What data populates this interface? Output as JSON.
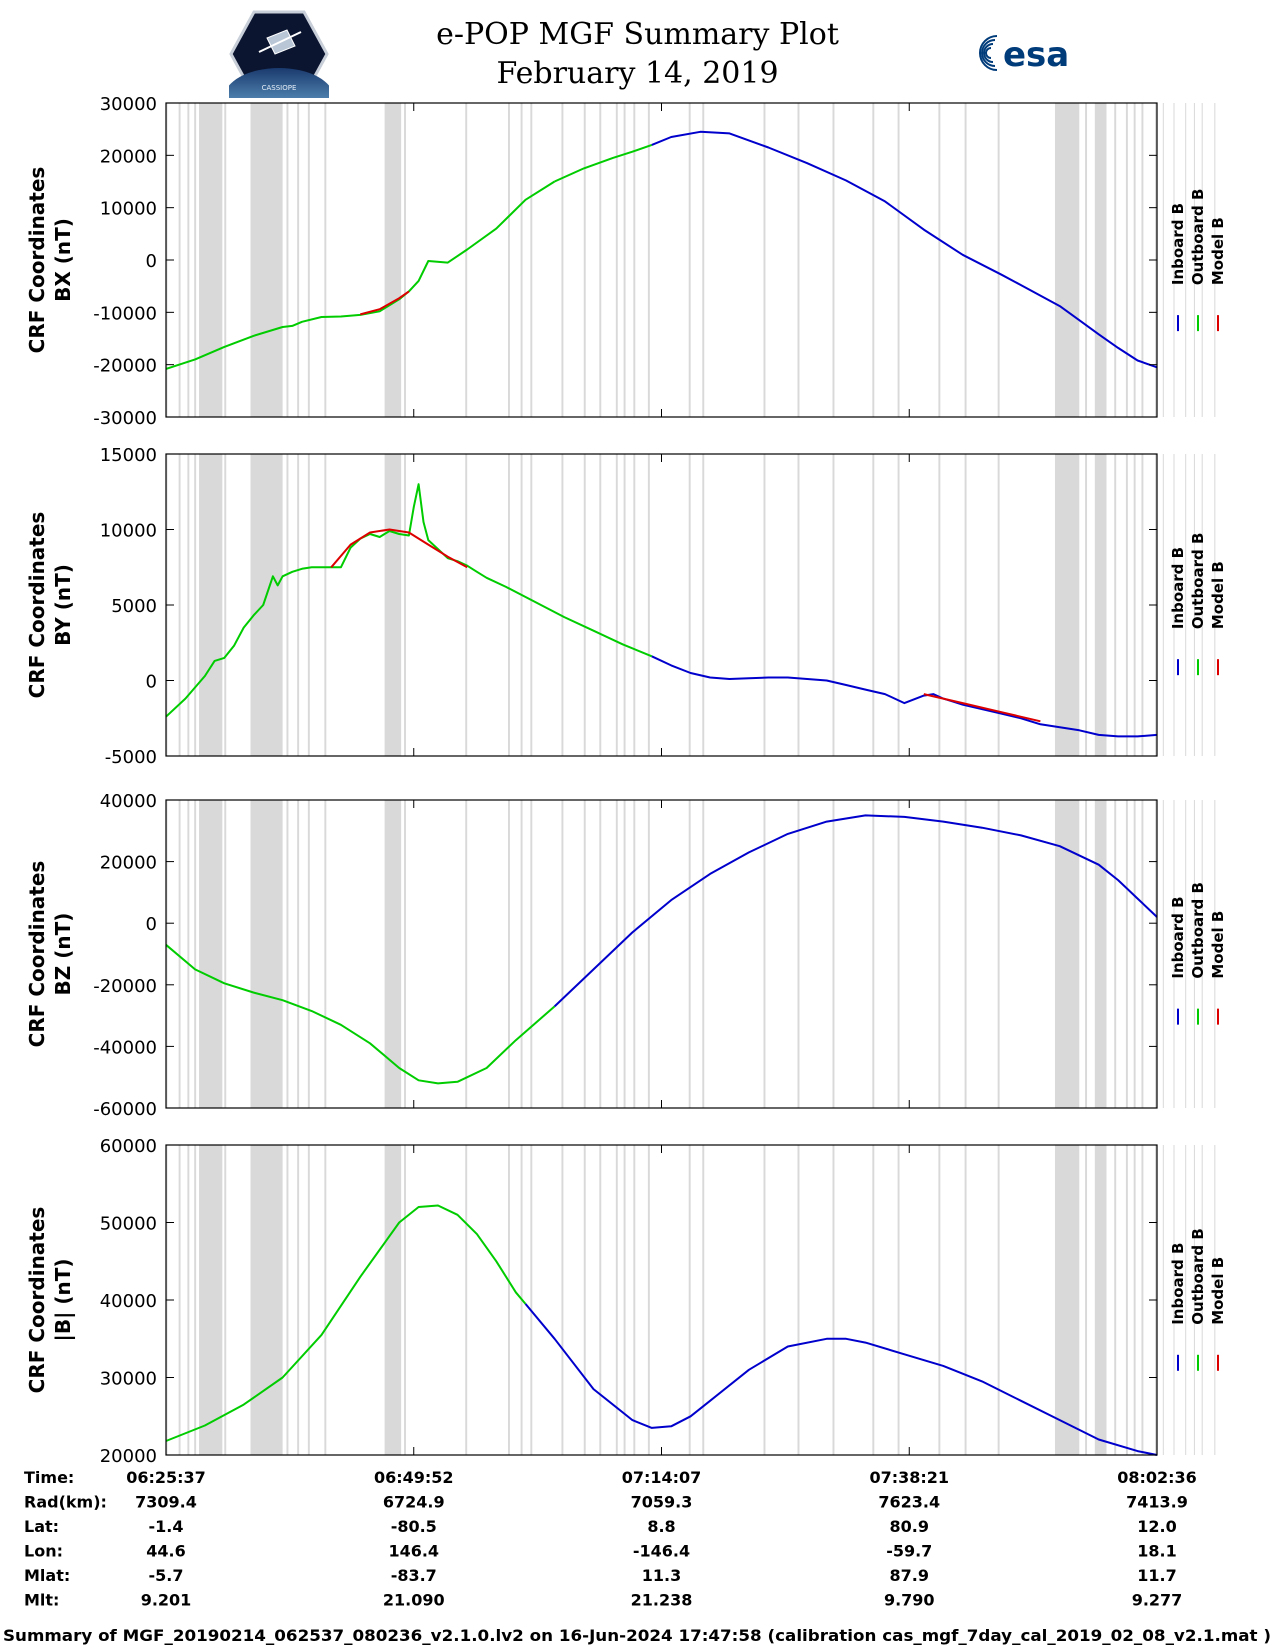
{
  "header": {
    "title_line1": "e-POP MGF Summary Plot",
    "title_line2": "February 14, 2019",
    "left_logo": "cassiope-mission-logo",
    "left_logo_text": "CASSIOPE",
    "right_logo_text": "esa"
  },
  "colors": {
    "inboard": "#0000cc",
    "outboard": "#00cc00",
    "model": "#dd0000",
    "gap_shading": "#d9d9d9"
  },
  "legend": {
    "entries": [
      "Inboard B",
      "Outboard B",
      "Model B"
    ]
  },
  "gap_intervals_minutes": [
    [
      0.0,
      0.15
    ],
    [
      1.3,
      1.5
    ],
    [
      2.2,
      2.4
    ],
    [
      2.9,
      3.1
    ],
    [
      3.4,
      5.8
    ],
    [
      6.0,
      6.2
    ],
    [
      8.7,
      12.0
    ],
    [
      12.4,
      12.6
    ],
    [
      13.5,
      13.7
    ],
    [
      14.6,
      14.8
    ],
    [
      16.3,
      16.5
    ],
    [
      22.5,
      24.2
    ],
    [
      24.5,
      24.7
    ],
    [
      30.8,
      31.0
    ],
    [
      35.2,
      35.4
    ],
    [
      36.5,
      36.7
    ],
    [
      37.5,
      37.7
    ],
    [
      40.7,
      40.9
    ],
    [
      43.0,
      43.2
    ],
    [
      44.6,
      44.8
    ],
    [
      46.3,
      46.5
    ],
    [
      47.1,
      47.3
    ],
    [
      48.1,
      48.3
    ],
    [
      49.6,
      49.8
    ],
    [
      53.8,
      54.0
    ],
    [
      55.2,
      55.4
    ],
    [
      61.5,
      61.7
    ],
    [
      65.0,
      65.2
    ],
    [
      68.6,
      68.8
    ],
    [
      72.7,
      72.9
    ],
    [
      75.3,
      75.5
    ],
    [
      79.5,
      79.7
    ],
    [
      82.2,
      82.4
    ],
    [
      85.6,
      85.8
    ],
    [
      91.5,
      94.0
    ],
    [
      94.6,
      94.8
    ],
    [
      95.6,
      96.8
    ],
    [
      97.6,
      97.8
    ],
    [
      98.8,
      99.0
    ],
    [
      99.6,
      99.8
    ],
    [
      100.4,
      100.6
    ],
    [
      101.8,
      102.0
    ],
    [
      102.6,
      102.8
    ],
    [
      103.7,
      103.9
    ],
    [
      104.9,
      105.1
    ],
    [
      105.8,
      106.0
    ],
    [
      106.6,
      106.8
    ],
    [
      107.9,
      108.1
    ]
  ],
  "chart_data": [
    {
      "type": "line",
      "id": "bx",
      "ylabel_line1": "CRF Coordinates",
      "ylabel_line2": "BX (nT)",
      "ylim": [
        -30000,
        30000
      ],
      "yticks": [
        -30000,
        -20000,
        -10000,
        0,
        10000,
        20000,
        30000
      ],
      "ytick_labels": [
        "-30000",
        "-20000",
        "-10000",
        "0",
        "10000",
        "20000",
        "30000"
      ],
      "xlim_minutes": [
        0,
        102
      ],
      "series": [
        {
          "name": "Outboard B",
          "x": [
            0,
            3,
            6,
            9,
            12,
            13,
            14,
            16,
            18,
            20,
            22,
            24,
            25,
            26,
            27,
            29,
            31,
            34,
            37,
            40
          ],
          "values": [
            -20800,
            -19000,
            -16600,
            -14500,
            -12800,
            -12600,
            -11800,
            -10900,
            -10800,
            -10500,
            -9800,
            -7500,
            -6000,
            -4000,
            -200,
            -500,
            2000,
            6000,
            11500,
            15000
          ]
        },
        {
          "name": "Outboard B",
          "x": [
            40,
            43,
            46,
            48,
            50
          ],
          "values": [
            15000,
            17500,
            19500,
            20700,
            22000
          ]
        },
        {
          "name": "Model B",
          "x": [
            20,
            22,
            24,
            25
          ],
          "values": [
            -10400,
            -9400,
            -7300,
            -6000
          ]
        },
        {
          "name": "Inboard B",
          "x": [
            50,
            52,
            55,
            58,
            62,
            66,
            70,
            74,
            78,
            82,
            86,
            88,
            90,
            92,
            94,
            96,
            98,
            100,
            102
          ],
          "values": [
            22000,
            23500,
            24500,
            24200,
            21500,
            18500,
            15200,
            11200,
            5800,
            1000,
            -2800,
            -4800,
            -6800,
            -8800,
            -11500,
            -14200,
            -16800,
            -19200,
            -20500
          ]
        }
      ]
    },
    {
      "type": "line",
      "id": "by",
      "ylabel_line1": "CRF Coordinates",
      "ylabel_line2": "BY (nT)",
      "ylim": [
        -5000,
        15000
      ],
      "yticks": [
        -5000,
        0,
        5000,
        10000,
        15000
      ],
      "ytick_labels": [
        "-5000",
        "0",
        "5000",
        "10000",
        "15000"
      ],
      "xlim_minutes": [
        0,
        102
      ],
      "series": [
        {
          "name": "Outboard B",
          "x": [
            0,
            2,
            4,
            5,
            6,
            7,
            8,
            9,
            10,
            11,
            11.5,
            12,
            13,
            14,
            15,
            16,
            17,
            18,
            19,
            20,
            21,
            22,
            23,
            24,
            25,
            25.5,
            26,
            26.5,
            27,
            28,
            29,
            30,
            31,
            32,
            33,
            35,
            38,
            41,
            44,
            47,
            50
          ],
          "values": [
            -2400,
            -1200,
            300,
            1300,
            1500,
            2300,
            3500,
            4300,
            5000,
            6900,
            6300,
            6900,
            7200,
            7400,
            7500,
            7500,
            7500,
            7500,
            8800,
            9400,
            9700,
            9500,
            9900,
            9700,
            9600,
            11500,
            13000,
            10500,
            9300,
            8700,
            8100,
            7900,
            7600,
            7200,
            6800,
            6200,
            5200,
            4200,
            3300,
            2400,
            1600
          ]
        },
        {
          "name": "Model B",
          "x": [
            17,
            19,
            21,
            23,
            25,
            27,
            29,
            31
          ],
          "values": [
            7500,
            9000,
            9800,
            10000,
            9800,
            9000,
            8200,
            7500
          ]
        },
        {
          "name": "Inboard B",
          "x": [
            50,
            52,
            54,
            56,
            58,
            60,
            62,
            64,
            66,
            68,
            70,
            72,
            74,
            76,
            78,
            79,
            80,
            81,
            82,
            84,
            86,
            88,
            90,
            92,
            94,
            96,
            98,
            100,
            102
          ],
          "values": [
            1600,
            1000,
            500,
            200,
            100,
            150,
            200,
            200,
            100,
            0,
            -300,
            -600,
            -900,
            -1500,
            -1000,
            -900,
            -1200,
            -1400,
            -1600,
            -1900,
            -2200,
            -2500,
            -2900,
            -3100,
            -3300,
            -3600,
            -3700,
            -3700,
            -3600
          ]
        },
        {
          "name": "Model B",
          "x": [
            78,
            82,
            86,
            90
          ],
          "values": [
            -900,
            -1500,
            -2100,
            -2700
          ]
        }
      ]
    },
    {
      "type": "line",
      "id": "bz",
      "ylabel_line1": "CRF Coordinates",
      "ylabel_line2": "BZ (nT)",
      "ylim": [
        -60000,
        40000
      ],
      "yticks": [
        -60000,
        -40000,
        -20000,
        0,
        20000,
        40000
      ],
      "ytick_labels": [
        "-60000",
        "-40000",
        "-20000",
        "0",
        "20000",
        "40000"
      ],
      "xlim_minutes": [
        0,
        102
      ],
      "series": [
        {
          "name": "Outboard B",
          "x": [
            0,
            3,
            6,
            9,
            12,
            15,
            18,
            21,
            24,
            26,
            28,
            30,
            33,
            36,
            40
          ],
          "values": [
            -7000,
            -15000,
            -19500,
            -22500,
            -25000,
            -28500,
            -33000,
            -39000,
            -47000,
            -51000,
            -52000,
            -51500,
            -47000,
            -38000,
            -27000
          ]
        },
        {
          "name": "Inboard B",
          "x": [
            40,
            44,
            48,
            52,
            56,
            60,
            64,
            68,
            72,
            76,
            80,
            84,
            88,
            92,
            96,
            98,
            100,
            102
          ],
          "values": [
            -27000,
            -15000,
            -3000,
            7500,
            16000,
            23000,
            29000,
            33000,
            35000,
            34500,
            33000,
            31000,
            28500,
            25000,
            19000,
            14000,
            8000,
            2000
          ]
        }
      ]
    },
    {
      "type": "line",
      "id": "bmag",
      "ylabel_line1": "CRF Coordinates",
      "ylabel_line2": "|B| (nT)",
      "ylim": [
        20000,
        60000
      ],
      "yticks": [
        20000,
        30000,
        40000,
        50000,
        60000
      ],
      "ytick_labels": [
        "20000",
        "30000",
        "40000",
        "50000",
        "60000"
      ],
      "xlim_minutes": [
        0,
        102
      ],
      "series": [
        {
          "name": "Outboard B",
          "x": [
            0,
            4,
            8,
            12,
            16,
            20,
            24,
            26,
            28,
            30,
            32,
            34,
            36,
            37
          ],
          "values": [
            21800,
            23800,
            26500,
            30000,
            35500,
            43000,
            50000,
            52000,
            52200,
            51000,
            48500,
            45000,
            41000,
            39500
          ]
        },
        {
          "name": "Inboard B",
          "x": [
            37,
            40,
            44,
            48,
            50,
            52,
            54,
            56,
            60,
            64,
            68,
            70,
            72,
            76,
            80,
            84,
            88,
            92,
            96,
            100,
            102
          ],
          "values": [
            39500,
            35000,
            28500,
            24500,
            23500,
            23700,
            25000,
            27000,
            31000,
            34000,
            35000,
            35000,
            34500,
            33000,
            31500,
            29500,
            27000,
            24500,
            22000,
            20500,
            20000
          ]
        }
      ]
    }
  ],
  "xaxis": {
    "ticks_minutes": [
      0,
      25.5,
      51,
      76.5,
      102
    ]
  },
  "orbit_table": {
    "row_labels": [
      "Time:",
      "Rad(km):",
      "Lat:",
      "Lon:",
      "Mlat:",
      "Mlt:"
    ],
    "columns": [
      [
        "06:25:37",
        "7309.4",
        "-1.4",
        "44.6",
        "-5.7",
        "9.201"
      ],
      [
        "06:49:52",
        "6724.9",
        "-80.5",
        "146.4",
        "-83.7",
        "21.090"
      ],
      [
        "07:14:07",
        "7059.3",
        "8.8",
        "-146.4",
        "11.3",
        "21.238"
      ],
      [
        "07:38:21",
        "7623.4",
        "80.9",
        "-59.7",
        "87.9",
        "9.790"
      ],
      [
        "08:02:36",
        "7413.9",
        "12.0",
        "18.1",
        "11.7",
        "9.277"
      ]
    ]
  },
  "footer": {
    "text": "Summary of MGF_20190214_062537_080236_v2.1.0.lv2 on 16-Jun-2024 17:47:58 (calibration cas_mgf_7day_cal_2019_02_08_v2.1.mat )"
  }
}
